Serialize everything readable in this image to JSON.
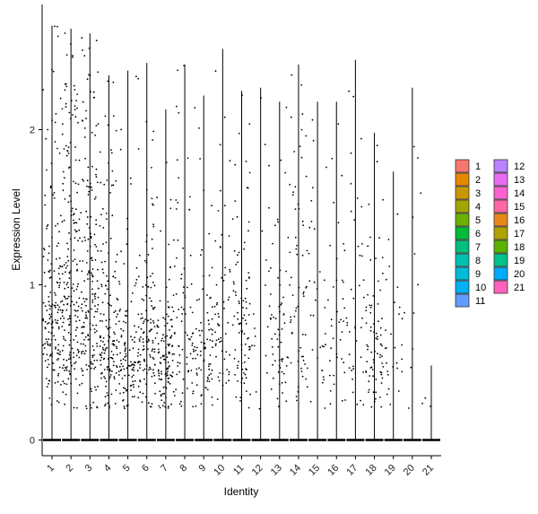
{
  "chart_data": {
    "type": "scatter",
    "subtype": "violin-jitter",
    "title": "",
    "xlabel": "Identity",
    "ylabel": "Expression Level",
    "ylim": [
      -0.15,
      2.75
    ],
    "yticks": [
      0,
      1,
      2
    ],
    "categories": [
      "1",
      "2",
      "3",
      "4",
      "5",
      "6",
      "7",
      "8",
      "9",
      "10",
      "11",
      "12",
      "13",
      "14",
      "15",
      "16",
      "17",
      "18",
      "19",
      "20",
      "21"
    ],
    "colors": [
      "#F8766D",
      "#E58700",
      "#C99800",
      "#A3A500",
      "#6BB100",
      "#00BA38",
      "#00BF7D",
      "#00C0AF",
      "#00BCD8",
      "#00B0F6",
      "#619CFF",
      "#B983FF",
      "#E76BF3",
      "#FD61D1",
      "#FF67A4",
      "#E7861B",
      "#AEA200",
      "#5BB300",
      "#00C08B",
      "#00ABFD",
      "#FF62BC"
    ],
    "legend": {
      "position": "right",
      "columns": [
        [
          "1",
          "2",
          "3",
          "4",
          "5",
          "6",
          "7",
          "8",
          "9",
          "10",
          "11"
        ],
        [
          "12",
          "13",
          "14",
          "15",
          "16",
          "17",
          "18",
          "19",
          "20",
          "21"
        ]
      ]
    },
    "series": [
      {
        "name": "1",
        "max": 2.67,
        "density": [
          0.3,
          0.9,
          1.0,
          0.55,
          0.28,
          0.18,
          0.12,
          0.1,
          0.08,
          0.06
        ]
      },
      {
        "name": "2",
        "max": 2.65,
        "density": [
          0.35,
          0.85,
          0.95,
          0.65,
          0.45,
          0.35,
          0.3,
          0.28,
          0.22,
          0.1
        ]
      },
      {
        "name": "3",
        "max": 2.62,
        "density": [
          0.3,
          0.8,
          0.9,
          0.6,
          0.4,
          0.3,
          0.25,
          0.22,
          0.2,
          0.1
        ]
      },
      {
        "name": "4",
        "max": 2.35,
        "density": [
          0.45,
          1.0,
          0.7,
          0.4,
          0.25,
          0.18,
          0.15,
          0.1,
          0.08,
          0.04
        ]
      },
      {
        "name": "5",
        "max": 2.38,
        "density": [
          0.6,
          0.9,
          0.4,
          0.15,
          0.08,
          0.05,
          0.04,
          0.03,
          0.03,
          0.02
        ]
      },
      {
        "name": "6",
        "max": 2.43,
        "density": [
          0.4,
          1.0,
          0.75,
          0.35,
          0.15,
          0.1,
          0.06,
          0.05,
          0.05,
          0.03
        ]
      },
      {
        "name": "7",
        "max": 2.13,
        "density": [
          0.55,
          1.0,
          0.7,
          0.25,
          0.1,
          0.06,
          0.04,
          0.03,
          0.02,
          0.01
        ]
      },
      {
        "name": "8",
        "max": 2.42,
        "density": [
          0.25,
          0.45,
          0.35,
          0.2,
          0.1,
          0.08,
          0.06,
          0.05,
          0.05,
          0.04
        ]
      },
      {
        "name": "9",
        "max": 2.22,
        "density": [
          0.3,
          0.6,
          0.4,
          0.18,
          0.08,
          0.05,
          0.04,
          0.03,
          0.02,
          0.02
        ]
      },
      {
        "name": "10",
        "max": 2.52,
        "density": [
          0.2,
          0.3,
          0.3,
          0.2,
          0.1,
          0.05,
          0.04,
          0.03,
          0.02,
          0.02
        ]
      },
      {
        "name": "11",
        "max": 2.25,
        "density": [
          0.25,
          0.45,
          0.45,
          0.35,
          0.2,
          0.12,
          0.08,
          0.06,
          0.04,
          0.03
        ]
      },
      {
        "name": "12",
        "max": 2.27,
        "density": [
          0.05,
          0.08,
          0.08,
          0.05,
          0.04,
          0.03,
          0.03,
          0.03,
          0.03,
          0.02
        ]
      },
      {
        "name": "13",
        "max": 2.18,
        "density": [
          0.2,
          0.35,
          0.3,
          0.2,
          0.1,
          0.06,
          0.04,
          0.03,
          0.02,
          0.02
        ]
      },
      {
        "name": "14",
        "max": 2.42,
        "density": [
          0.15,
          0.25,
          0.25,
          0.2,
          0.15,
          0.12,
          0.1,
          0.08,
          0.06,
          0.04
        ]
      },
      {
        "name": "15",
        "max": 2.18,
        "density": [
          0.08,
          0.12,
          0.12,
          0.1,
          0.08,
          0.06,
          0.05,
          0.04,
          0.03,
          0.02
        ]
      },
      {
        "name": "16",
        "max": 2.18,
        "density": [
          0.12,
          0.2,
          0.18,
          0.12,
          0.08,
          0.06,
          0.04,
          0.03,
          0.02,
          0.02
        ]
      },
      {
        "name": "17",
        "max": 2.45,
        "density": [
          0.1,
          0.18,
          0.18,
          0.12,
          0.08,
          0.06,
          0.05,
          0.04,
          0.03,
          0.02
        ]
      },
      {
        "name": "18",
        "max": 1.98,
        "density": [
          0.25,
          0.45,
          0.4,
          0.25,
          0.12,
          0.08,
          0.05,
          0.04,
          0.03,
          0.02
        ]
      },
      {
        "name": "19",
        "max": 1.73,
        "density": [
          0.08,
          0.15,
          0.12,
          0.08,
          0.05,
          0.04,
          0.03,
          0.03,
          0.02,
          0.01
        ]
      },
      {
        "name": "20",
        "max": 2.27,
        "density": [
          0.03,
          0.05,
          0.05,
          0.03,
          0.02,
          0.02,
          0.02,
          0.02,
          0.02,
          0.01
        ]
      },
      {
        "name": "21",
        "max": 0.48,
        "density": [
          0.02,
          0.03,
          0.02,
          0.01,
          0.01,
          0.01,
          0.01,
          0.01,
          0.01,
          0.01
        ]
      }
    ]
  }
}
